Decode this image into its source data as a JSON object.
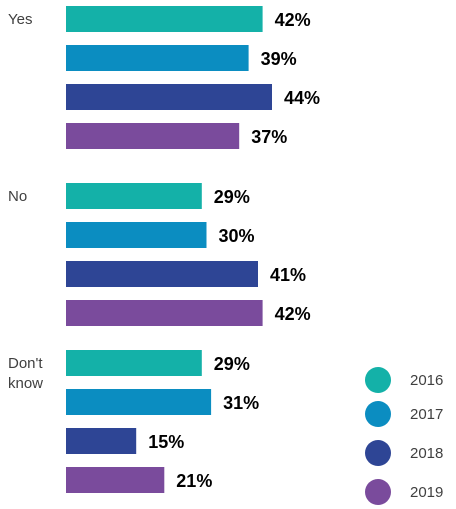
{
  "chart_data": {
    "type": "bar",
    "orientation": "horizontal",
    "title": "",
    "xlabel": "",
    "ylabel": "",
    "xlim": [
      0,
      44
    ],
    "grid": false,
    "legend_position": "bottom-right",
    "value_suffix": "%",
    "categories": [
      {
        "label_lines": [
          "Yes"
        ]
      },
      {
        "label_lines": [
          "No"
        ]
      },
      {
        "label_lines": [
          "Don't",
          "know"
        ]
      }
    ],
    "series": [
      {
        "name": "2016",
        "color": "#14b1a8",
        "values": [
          42,
          29,
          29
        ]
      },
      {
        "name": "2017",
        "color": "#0b8dc1",
        "values": [
          39,
          30,
          31
        ]
      },
      {
        "name": "2018",
        "color": "#2e4595",
        "values": [
          44,
          41,
          15
        ]
      },
      {
        "name": "2019",
        "color": "#7a4b9c",
        "values": [
          37,
          42,
          21
        ]
      }
    ]
  }
}
